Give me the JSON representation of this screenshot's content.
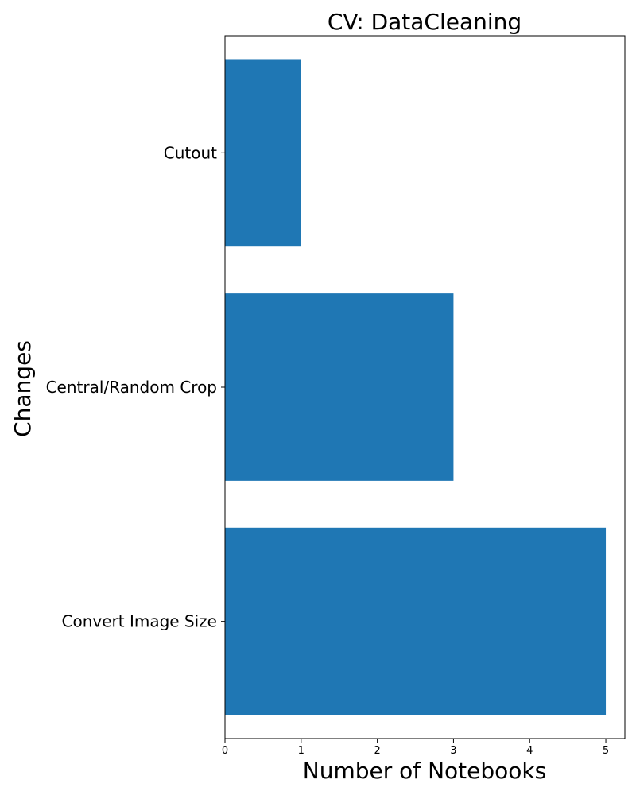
{
  "chart_data": {
    "type": "bar",
    "orientation": "horizontal",
    "title": "CV: DataCleaning",
    "xlabel": "Number of Notebooks",
    "ylabel": "Changes",
    "categories": [
      "Convert Image Size",
      "Central/Random Crop",
      "Cutout"
    ],
    "values": [
      5,
      3,
      1
    ],
    "xlim": [
      0,
      5.25
    ],
    "xticks": [
      0,
      1,
      2,
      3,
      4,
      5
    ],
    "bar_color": "#1f77b4",
    "grid": false,
    "legend": "none"
  }
}
